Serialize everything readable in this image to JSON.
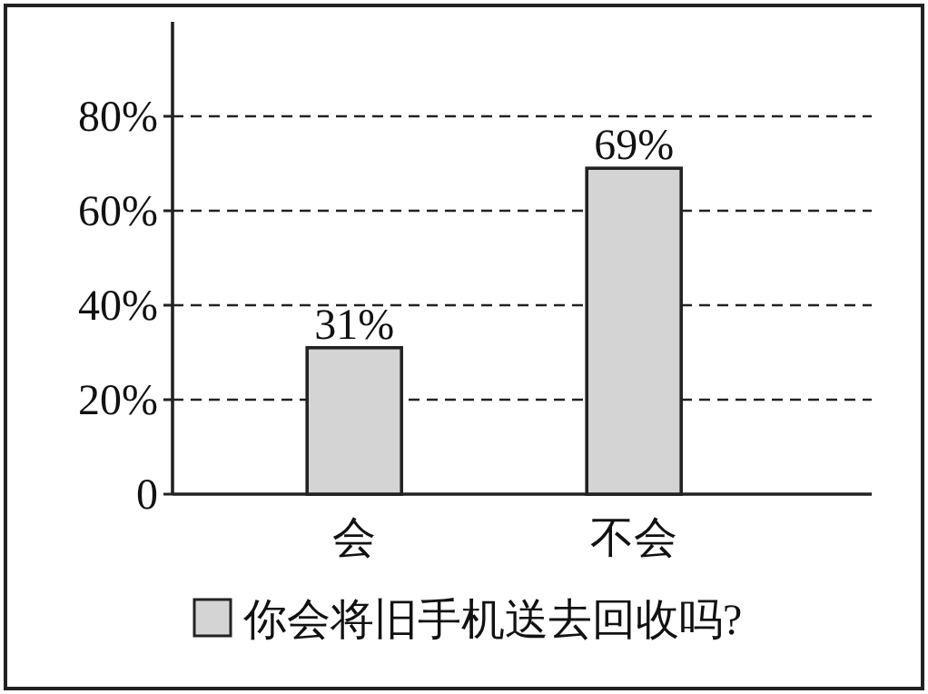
{
  "chart_data": {
    "type": "bar",
    "categories": [
      "会",
      "不会"
    ],
    "series": [
      {
        "name": "你会将旧手机送去回收吗?",
        "color": "#d4d4d4",
        "values": [
          31,
          69
        ],
        "value_labels": [
          "31%",
          "69%"
        ]
      }
    ],
    "ylim": [
      0,
      100
    ],
    "yticks": [
      0,
      {
        "value": 20,
        "label": "20%"
      },
      {
        "value": 40,
        "label": "40%"
      },
      {
        "value": 60,
        "label": "60%"
      },
      {
        "value": 80,
        "label": "80%"
      }
    ],
    "grid": "y",
    "legend": "bottom"
  }
}
